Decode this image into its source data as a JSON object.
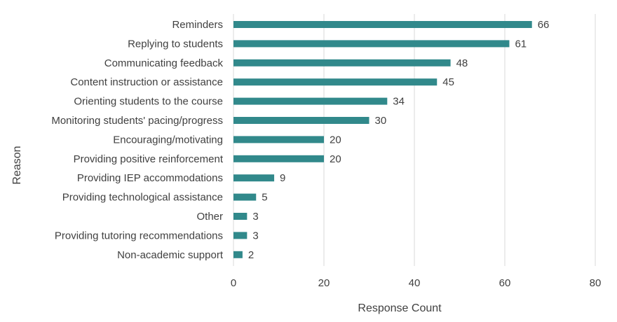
{
  "chart_data": {
    "type": "bar",
    "orientation": "horizontal",
    "title": "",
    "xlabel": "Response Count",
    "ylabel": "Reason",
    "xlim": [
      0,
      80
    ],
    "xticks": [
      0,
      20,
      40,
      60,
      80
    ],
    "grid": true,
    "legend": "none",
    "colors": {
      "bar": "#31898b",
      "grid": "#d9d9d9",
      "text": "#404040"
    },
    "categories": [
      "Reminders",
      "Replying to students",
      "Communicating feedback",
      "Content instruction or assistance",
      "Orienting students to the course",
      "Monitoring students' pacing/progress",
      "Encouraging/motivating",
      "Providing positive reinforcement",
      "Providing IEP accommodations",
      "Providing technological assistance",
      "Other",
      "Providing tutoring recommendations",
      "Non-academic support"
    ],
    "values": [
      66,
      61,
      48,
      45,
      34,
      30,
      20,
      20,
      9,
      5,
      3,
      3,
      2
    ]
  }
}
